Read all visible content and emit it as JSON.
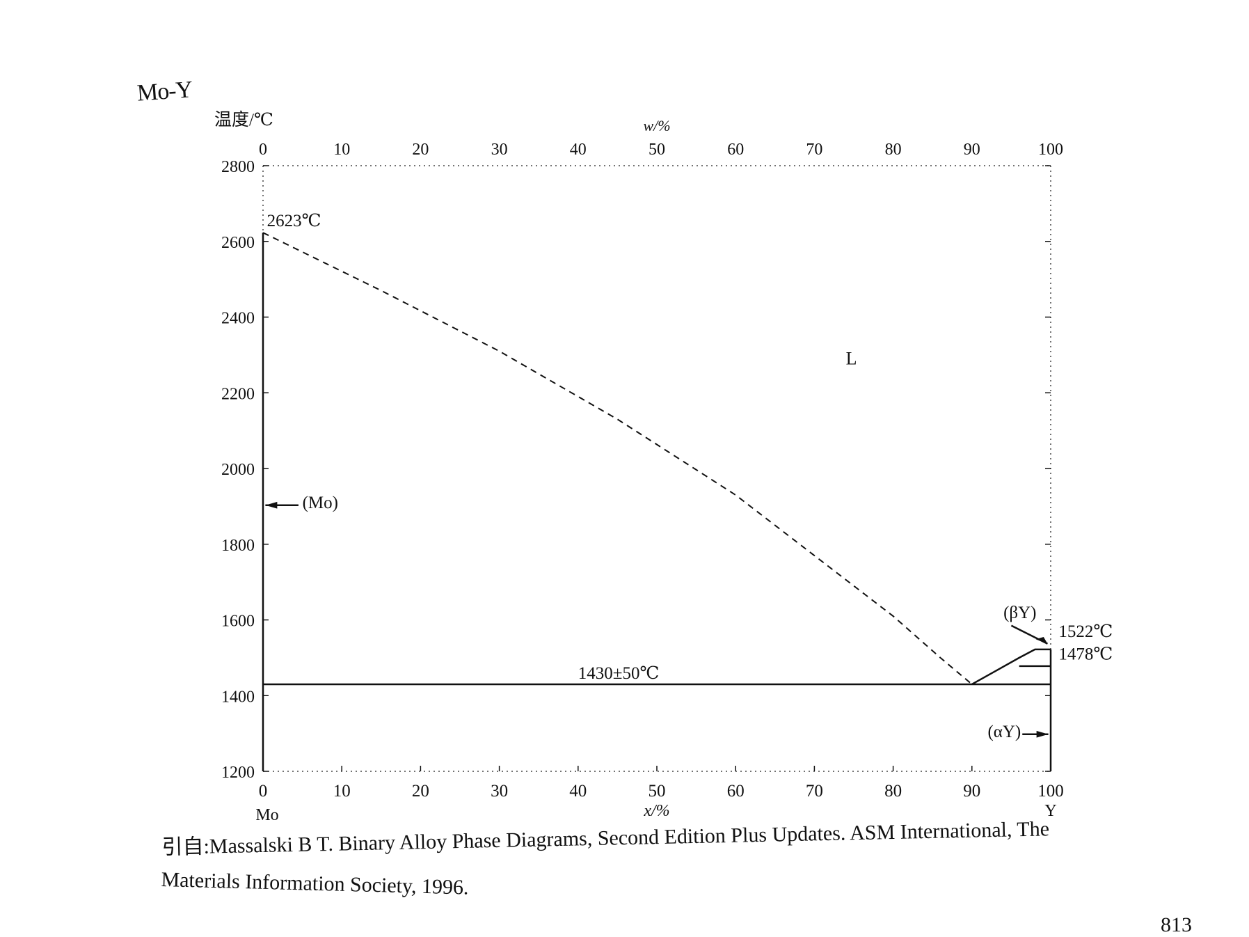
{
  "system_title": "Mo-Y",
  "page_number": "813",
  "caption": {
    "line1": "引自:Massalski B T. Binary Alloy Phase Diagrams, Second Edition Plus Updates. ASM International, The",
    "line2": "Materials Information Society, 1996."
  },
  "chart_data": {
    "type": "line",
    "ylabel": "温度/℃",
    "top_axis_label": "w/%",
    "xlabel": "x/%",
    "xlim": [
      0,
      100
    ],
    "ylim": [
      1200,
      2800
    ],
    "x_ticks": [
      "0",
      "10",
      "20",
      "30",
      "40",
      "50",
      "60",
      "70",
      "80",
      "90",
      "100"
    ],
    "top_ticks": [
      "0",
      "10",
      "20",
      "30",
      "40",
      "50",
      "60",
      "70",
      "80",
      "90",
      "100"
    ],
    "y_ticks": [
      "1200",
      "1400",
      "1600",
      "1800",
      "2000",
      "2200",
      "2400",
      "2600",
      "2800"
    ],
    "left_element": "Mo",
    "right_element": "Y",
    "series": [
      {
        "style": "dashed",
        "x": [
          0,
          15,
          30,
          45,
          60,
          70,
          80,
          86,
          90
        ],
        "y": [
          2623,
          2470,
          2310,
          2130,
          1930,
          1770,
          1610,
          1500,
          1430
        ]
      },
      {
        "style": "solid",
        "x": [
          0,
          100
        ],
        "y": [
          1430,
          1430
        ]
      },
      {
        "style": "solid",
        "x": [
          0,
          0
        ],
        "y": [
          1200,
          2623
        ]
      },
      {
        "style": "solid",
        "x": [
          100,
          100
        ],
        "y": [
          1200,
          1522
        ]
      },
      {
        "style": "solid",
        "x": [
          90,
          93,
          96,
          98,
          100
        ],
        "y": [
          1430,
          1465,
          1500,
          1522,
          1522
        ]
      },
      {
        "style": "solid",
        "x": [
          96,
          100
        ],
        "y": [
          1478,
          1478
        ]
      }
    ],
    "annotations": [
      {
        "text": "2623℃",
        "x": 0.5,
        "y": 2640
      },
      {
        "text": "L",
        "x": 74,
        "y": 2275
      },
      {
        "text": "(Mo)",
        "x": 5,
        "y": 1895
      },
      {
        "text": "1430±50℃",
        "x": 40,
        "y": 1445
      },
      {
        "text": "(βY)",
        "x": 94,
        "y": 1605
      },
      {
        "text": "1522℃",
        "x": 101,
        "y": 1555
      },
      {
        "text": "1478℃",
        "x": 101,
        "y": 1495
      },
      {
        "text": "(αY)",
        "x": 92,
        "y": 1290
      }
    ]
  }
}
